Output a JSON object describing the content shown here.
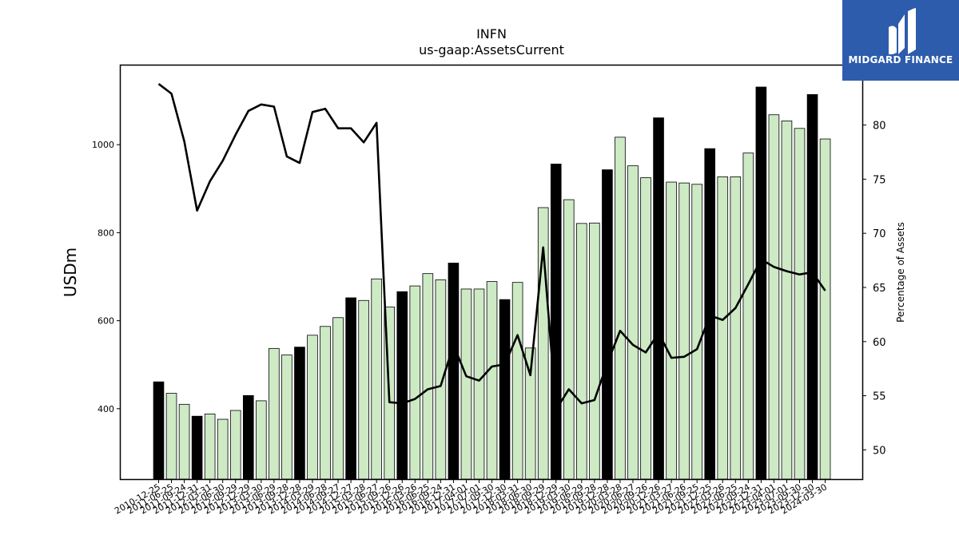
{
  "logo": {
    "name": "MIDGARD FINANCE",
    "icon": "midgard-logo-icon"
  },
  "chart_data": {
    "type": "bar",
    "title": "INFN",
    "subtitle": "us-gaap:AssetsCurrent",
    "ylabel": "USDm",
    "y2label": "Percentage of Assets",
    "ylim": [
      240,
      1180
    ],
    "y2lim": [
      47.3,
      85.5
    ],
    "yticks": [
      400,
      600,
      800,
      1000
    ],
    "y2ticks": [
      50,
      55,
      60,
      65,
      70,
      75,
      80
    ],
    "colors": {
      "annual": "#000000",
      "quarterly": "#cdeac5",
      "edge": "#000000",
      "line": "#000000"
    },
    "categories": [
      "2010-12-25",
      "2011-06-25",
      "2011-09-24",
      "2011-12-31",
      "2012-03-31",
      "2012-06-30",
      "2012-09-29",
      "2012-12-29",
      "2013-03-30",
      "2013-06-29",
      "2013-09-28",
      "2013-12-28",
      "2014-03-29",
      "2014-06-28",
      "2014-09-27",
      "2014-12-27",
      "2015-03-28",
      "2015-06-27",
      "2015-09-26",
      "2015-12-26",
      "2016-03-26",
      "2016-06-25",
      "2016-09-24",
      "2016-12-31",
      "2017-04-01",
      "2017-07-01",
      "2017-09-30",
      "2017-12-30",
      "2018-03-31",
      "2018-06-30",
      "2018-09-29",
      "2018-12-29",
      "2019-03-30",
      "2019-06-29",
      "2019-09-28",
      "2019-12-28",
      "2020-03-28",
      "2020-06-27",
      "2020-09-26",
      "2020-12-26",
      "2021-03-27",
      "2021-06-26",
      "2021-09-25",
      "2021-12-25",
      "2022-03-26",
      "2022-06-25",
      "2022-09-24",
      "2022-12-31",
      "2023-04-01",
      "2023-07-01",
      "2023-09-30",
      "2023-12-30",
      "2024-03-30"
    ],
    "series": [
      {
        "kind": "bar",
        "values": [
          461,
          435,
          410,
          383,
          388,
          376,
          396,
          430,
          418,
          537,
          522,
          540,
          567,
          587,
          607,
          652,
          646,
          695,
          631,
          666,
          679,
          707,
          693,
          731,
          672,
          672,
          689,
          648,
          687,
          538,
          857,
          956,
          875,
          821,
          822,
          943,
          1017,
          952,
          925,
          1061,
          915,
          913,
          910,
          991,
          927,
          927,
          981,
          1131,
          1068,
          1054,
          1037,
          1114,
          1013
        ],
        "annual": [
          true,
          false,
          false,
          true,
          false,
          false,
          false,
          true,
          false,
          false,
          false,
          true,
          false,
          false,
          false,
          true,
          false,
          false,
          false,
          true,
          false,
          false,
          false,
          true,
          false,
          false,
          false,
          true,
          false,
          false,
          false,
          true,
          false,
          false,
          false,
          true,
          false,
          false,
          false,
          true,
          false,
          false,
          false,
          true,
          false,
          false,
          false,
          true,
          false,
          false,
          false,
          true,
          false
        ]
      },
      {
        "kind": "line",
        "axis": "right",
        "values": [
          83.8,
          82.9,
          78.5,
          72.1,
          74.8,
          76.7,
          79.1,
          81.3,
          81.9,
          81.7,
          77.1,
          76.5,
          81.2,
          81.5,
          79.7,
          79.7,
          78.4,
          80.2,
          54.4,
          54.3,
          54.7,
          55.6,
          55.9,
          59.7,
          56.8,
          56.4,
          57.7,
          57.9,
          60.6,
          56.9,
          68.7,
          53.7,
          55.6,
          54.3,
          54.6,
          58.0,
          61.0,
          59.7,
          59.0,
          60.8,
          58.5,
          58.6,
          59.3,
          62.4,
          62.0,
          63.1,
          65.3,
          67.6,
          66.9,
          66.5,
          66.2,
          66.4,
          64.7
        ]
      }
    ]
  }
}
